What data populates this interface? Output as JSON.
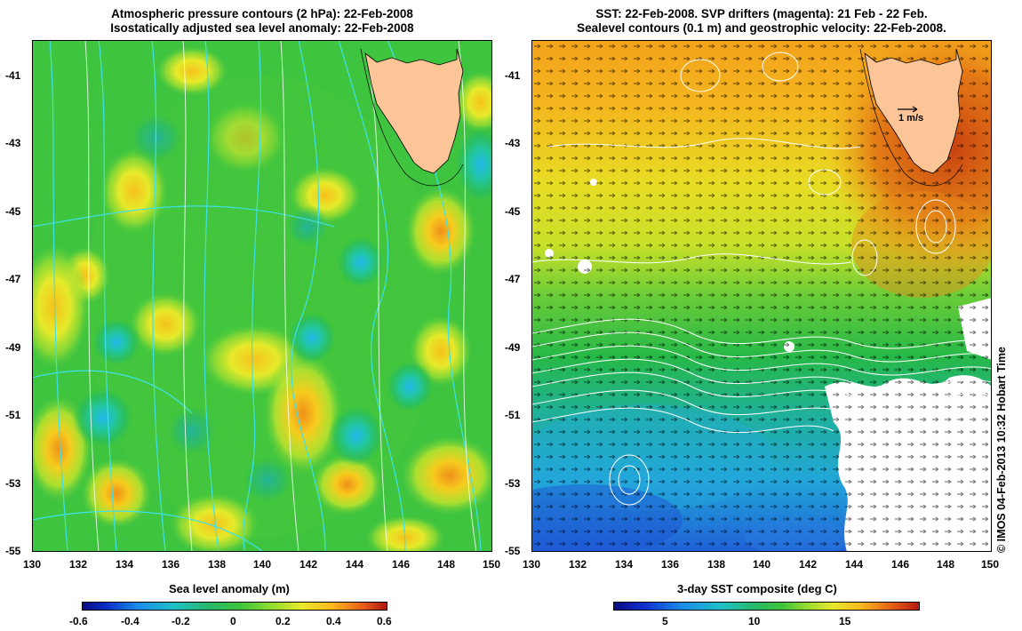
{
  "left_panel": {
    "title_line1": "Atmospheric pressure contours (2 hPa): 22-Feb-2008",
    "title_line2": "Isostatically adjusted sea level anomaly: 22-Feb-2008",
    "colorbar": {
      "label": "Sea level anomaly (m)",
      "ticks": [
        "-0.6",
        "-0.4",
        "-0.2",
        "0",
        "0.2",
        "0.4",
        "0.6"
      ]
    }
  },
  "right_panel": {
    "title_line1": "SST: 22-Feb-2008. SVP drifters (magenta): 21 Feb - 22 Feb.",
    "title_line2": "Sealevel contours (0.1 m) and geostrophic velocity: 22-Feb-2008.",
    "velocity_scale_label": "1 m/s",
    "colorbar": {
      "label": "3-day SST composite (deg C)",
      "ticks": [
        "5",
        "10",
        "15"
      ]
    }
  },
  "axes": {
    "x_ticks": [
      "130",
      "132",
      "134",
      "136",
      "138",
      "140",
      "142",
      "144",
      "146",
      "148",
      "150"
    ],
    "y_ticks": [
      "-41",
      "-43",
      "-45",
      "-47",
      "-49",
      "-51",
      "-53",
      "-55"
    ]
  },
  "credit": "© IMOS 04-Feb-2013 10:32 Hobart Time",
  "colors": {
    "land": "#fbc598",
    "sla_base": "#3cc43c",
    "contour_cyan": "#40e0e8",
    "contour_white": "#ffffff"
  }
}
